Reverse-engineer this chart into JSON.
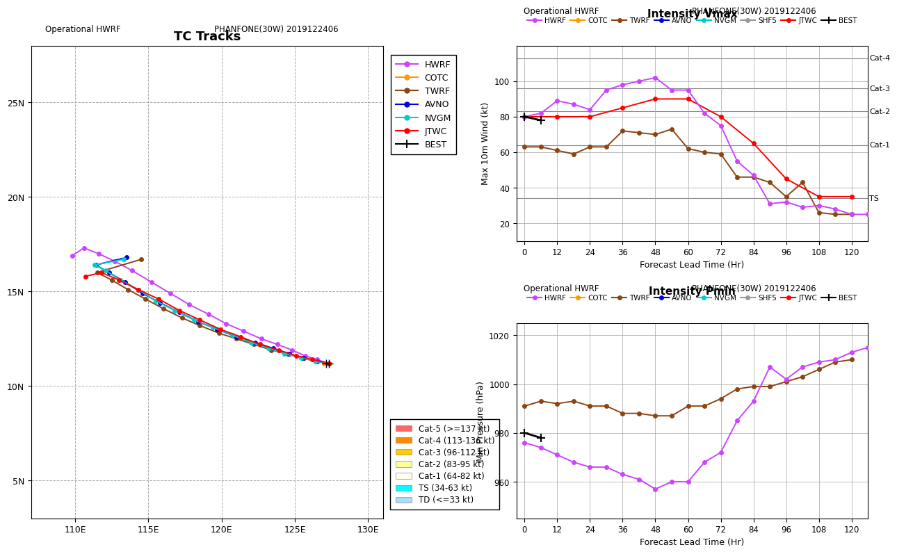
{
  "title_map": "TC Tracks",
  "subtitle_left": "Operational HWRF",
  "subtitle_right": "PHANFONE(30W) 2019122406",
  "map_extent": [
    107,
    131,
    3,
    28
  ],
  "map_xticks": [
    110,
    115,
    120,
    125,
    130
  ],
  "map_yticks": [
    5,
    10,
    15,
    20,
    25
  ],
  "tracks": {
    "HWRF": {
      "color": "#CC44FF",
      "lons": [
        127.3,
        126.5,
        125.7,
        124.8,
        123.8,
        122.7,
        121.5,
        120.3,
        119.1,
        117.8,
        116.5,
        115.2,
        113.9,
        112.7,
        111.6,
        110.6,
        109.8
      ],
      "lats": [
        11.2,
        11.4,
        11.6,
        11.9,
        12.2,
        12.5,
        12.9,
        13.3,
        13.8,
        14.3,
        14.9,
        15.5,
        16.1,
        16.6,
        17.0,
        17.3,
        16.9
      ]
    },
    "COTC": {
      "color": "#FF9900",
      "lons": [
        127.3,
        127.0
      ],
      "lats": [
        11.2,
        11.2
      ]
    },
    "TWRF": {
      "color": "#8B4513",
      "lons": [
        127.3,
        126.4,
        125.5,
        124.5,
        123.4,
        122.2,
        121.0,
        119.8,
        118.5,
        117.3,
        116.0,
        114.8,
        113.6,
        112.5,
        111.5,
        114.5
      ],
      "lats": [
        11.2,
        11.3,
        11.5,
        11.7,
        11.9,
        12.2,
        12.5,
        12.8,
        13.2,
        13.6,
        14.1,
        14.6,
        15.1,
        15.6,
        16.0,
        16.7
      ]
    },
    "AVNO": {
      "color": "#0000DD",
      "lons": [
        127.3,
        126.5,
        125.6,
        124.6,
        123.5,
        122.3,
        121.0,
        119.7,
        118.4,
        117.1,
        115.8,
        114.6,
        113.4,
        112.3,
        111.4,
        113.5
      ],
      "lats": [
        11.2,
        11.3,
        11.5,
        11.7,
        12.0,
        12.3,
        12.6,
        13.0,
        13.4,
        13.9,
        14.4,
        14.9,
        15.5,
        16.0,
        16.4,
        16.8
      ]
    },
    "NVGM": {
      "color": "#00CCCC",
      "lons": [
        127.3,
        126.4,
        125.4,
        124.3,
        123.2,
        122.0,
        120.7,
        119.4,
        118.1,
        116.8,
        115.5,
        114.3,
        113.1,
        112.1,
        111.3,
        113.3
      ],
      "lats": [
        11.2,
        11.3,
        11.5,
        11.7,
        12.0,
        12.3,
        12.7,
        13.1,
        13.5,
        14.0,
        14.5,
        15.1,
        15.6,
        16.1,
        16.4,
        16.7
      ]
    },
    "JTWC": {
      "color": "#FF0000",
      "lons": [
        127.3,
        126.2,
        125.1,
        123.9,
        122.6,
        121.3,
        119.9,
        118.5,
        117.1,
        115.7,
        114.3,
        113.0,
        111.8,
        110.7
      ],
      "lats": [
        11.2,
        11.4,
        11.6,
        11.9,
        12.2,
        12.6,
        13.0,
        13.5,
        14.0,
        14.6,
        15.1,
        15.6,
        16.0,
        15.8
      ]
    },
    "BEST": {
      "color": "#000000",
      "lons": [
        127.3,
        127.15
      ],
      "lats": [
        11.2,
        11.2
      ]
    }
  },
  "vmax": {
    "title": "Intensity Vmax",
    "xlabel": "Forecast Lead Time (Hr)",
    "ylabel": "Max 10m Wind (kt)",
    "xlim": [
      -3,
      126
    ],
    "ylim": [
      10,
      120
    ],
    "xticks": [
      0,
      12,
      24,
      36,
      48,
      60,
      72,
      84,
      96,
      108,
      120
    ],
    "yticks": [
      20,
      40,
      60,
      80,
      100
    ],
    "cat_lines": [
      {
        "y": 113,
        "label": "Cat-4"
      },
      {
        "y": 96,
        "label": "Cat-3"
      },
      {
        "y": 83,
        "label": "Cat-2"
      },
      {
        "y": 64,
        "label": "Cat-1"
      },
      {
        "y": 34,
        "label": "TS"
      }
    ],
    "series": {
      "HWRF": {
        "color": "#CC44FF",
        "x": [
          0,
          6,
          12,
          18,
          24,
          30,
          36,
          42,
          48,
          54,
          60,
          66,
          72,
          78,
          84,
          90,
          96,
          102,
          108,
          114,
          120,
          126
        ],
        "y": [
          80,
          82,
          89,
          87,
          84,
          95,
          98,
          100,
          102,
          95,
          95,
          82,
          75,
          55,
          47,
          31,
          32,
          29,
          30,
          28,
          25,
          25
        ]
      },
      "TWRF": {
        "color": "#8B4513",
        "x": [
          0,
          6,
          12,
          18,
          24,
          30,
          36,
          42,
          48,
          54,
          60,
          66,
          72,
          78,
          84,
          90,
          96,
          102,
          108,
          114,
          120
        ],
        "y": [
          63,
          63,
          61,
          59,
          63,
          63,
          72,
          71,
          70,
          73,
          62,
          60,
          59,
          46,
          46,
          43,
          35,
          43,
          26,
          25,
          25
        ]
      },
      "JTWC": {
        "color": "#FF0000",
        "x": [
          0,
          12,
          24,
          36,
          48,
          60,
          72,
          84,
          96,
          108,
          120
        ],
        "y": [
          80,
          80,
          80,
          85,
          90,
          90,
          80,
          65,
          45,
          35,
          35
        ]
      },
      "BEST": {
        "color": "#000000",
        "x": [
          0,
          6
        ],
        "y": [
          80,
          78
        ]
      }
    }
  },
  "pmin": {
    "title": "Intensity Pmin",
    "xlabel": "Forecast Lead Time (Hr)",
    "ylabel": "Min Pressure (hPa)",
    "xlim": [
      -3,
      126
    ],
    "ylim": [
      945,
      1025
    ],
    "xticks": [
      0,
      12,
      24,
      36,
      48,
      60,
      72,
      84,
      96,
      108,
      120
    ],
    "yticks": [
      960,
      980,
      1000,
      1020
    ],
    "series": {
      "HWRF": {
        "color": "#CC44FF",
        "x": [
          0,
          6,
          12,
          18,
          24,
          30,
          36,
          42,
          48,
          54,
          60,
          66,
          72,
          78,
          84,
          90,
          96,
          102,
          108,
          114,
          120,
          126
        ],
        "y": [
          976,
          974,
          971,
          968,
          966,
          966,
          963,
          961,
          957,
          960,
          960,
          968,
          972,
          985,
          993,
          1007,
          1002,
          1007,
          1009,
          1010,
          1013,
          1015
        ]
      },
      "TWRF": {
        "color": "#8B4513",
        "x": [
          0,
          6,
          12,
          18,
          24,
          30,
          36,
          42,
          48,
          54,
          60,
          66,
          72,
          78,
          84,
          90,
          96,
          102,
          108,
          114,
          120
        ],
        "y": [
          991,
          993,
          992,
          993,
          991,
          991,
          988,
          988,
          987,
          987,
          991,
          991,
          994,
          998,
          999,
          999,
          1001,
          1003,
          1006,
          1009,
          1010
        ]
      },
      "BEST": {
        "color": "#000000",
        "x": [
          0,
          6
        ],
        "y": [
          980,
          978
        ]
      }
    }
  },
  "legend_model": [
    {
      "label": "HWRF",
      "color": "#CC44FF"
    },
    {
      "label": "COTC",
      "color": "#FF9900"
    },
    {
      "label": "TWRF",
      "color": "#8B4513"
    },
    {
      "label": "AVNO",
      "color": "#0000DD"
    },
    {
      "label": "NVGM",
      "color": "#00CCCC"
    },
    {
      "label": "SHF5",
      "color": "#999999"
    },
    {
      "label": "JTWC",
      "color": "#FF0000"
    },
    {
      "label": "BEST",
      "color": "#000000"
    }
  ],
  "legend_model_map": [
    {
      "label": "HWRF",
      "color": "#CC44FF"
    },
    {
      "label": "COTC",
      "color": "#FF9900"
    },
    {
      "label": "TWRF",
      "color": "#8B4513"
    },
    {
      "label": "AVNO",
      "color": "#0000DD"
    },
    {
      "label": "NVGM",
      "color": "#00CCCC"
    },
    {
      "label": "JTWC",
      "color": "#FF0000"
    },
    {
      "label": "BEST",
      "color": "#000000"
    }
  ],
  "legend_cat": [
    {
      "label": "Cat-5 (>=137 kt)",
      "color": "#FF6666"
    },
    {
      "label": "Cat-4 (113-136 kt)",
      "color": "#FF8800"
    },
    {
      "label": "Cat-3 (96-112 kt)",
      "color": "#FFCC00"
    },
    {
      "label": "Cat-2 (83-95 kt)",
      "color": "#FFFF99"
    },
    {
      "label": "Cat-1 (64-82 kt)",
      "color": "#FFFFEE"
    },
    {
      "label": "TS (34-63 kt)",
      "color": "#00FFFF"
    },
    {
      "label": "TD (<=33 kt)",
      "color": "#AADDFF"
    }
  ],
  "land_color": "#BBBBBB",
  "ocean_color": "#FFFFFF",
  "grid_color": "#AAAAAA"
}
